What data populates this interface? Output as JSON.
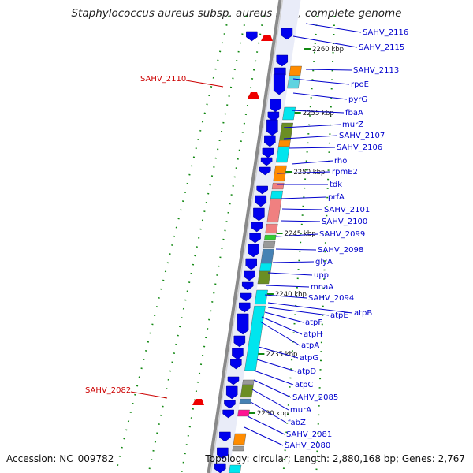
{
  "title": "Staphylococcus aureus subsp. aureus Mu3, complete genome",
  "footer": {
    "accession": "Accession: NC_009782",
    "summary": "Topology: circular; Length: 2,880,168 bp; Genes: 2,767"
  },
  "colors": {
    "backbone": "#8a8a8a",
    "gene_blue": "#0000ee",
    "gene_red": "#ee0000",
    "label_blue": "#0000cc",
    "label_red": "#cc0000",
    "tick_green": "#118811",
    "cyan": "#00e5ee",
    "orange": "#ff8c00",
    "olive": "#6b8e23",
    "salmon": "#f08080",
    "steel": "#4682b4",
    "magenta": "#ff1493",
    "grey": "#999999"
  },
  "scale_ticks": [
    "2260 kbp",
    "2255 kbp",
    "2250 kbp",
    "2245 kbp",
    "2240 kbp",
    "2235 kbp",
    "2230 kbp"
  ],
  "labels_right": [
    "SAHV_2116",
    "SAHV_2115",
    "SAHV_2113",
    "rpoE",
    "pyrG",
    "fbaA",
    "murZ",
    "SAHV_2107",
    "SAHV_2106",
    "rho",
    "rpmE2",
    "tdk",
    "prfA",
    "SAHV_2101",
    "SAHV_2100",
    "SAHV_2099",
    "SAHV_2098",
    "glyA",
    "upp",
    "mnaA",
    "SAHV_2094",
    "atpB",
    "atpE",
    "atpF",
    "atpH",
    "atpA",
    "atpG",
    "atpD",
    "atpC",
    "SAHV_2085",
    "murA",
    "fabZ",
    "SAHV_2081",
    "SAHV_2080"
  ],
  "labels_left": [
    "SAHV_2110",
    "SAHV_2082"
  ]
}
